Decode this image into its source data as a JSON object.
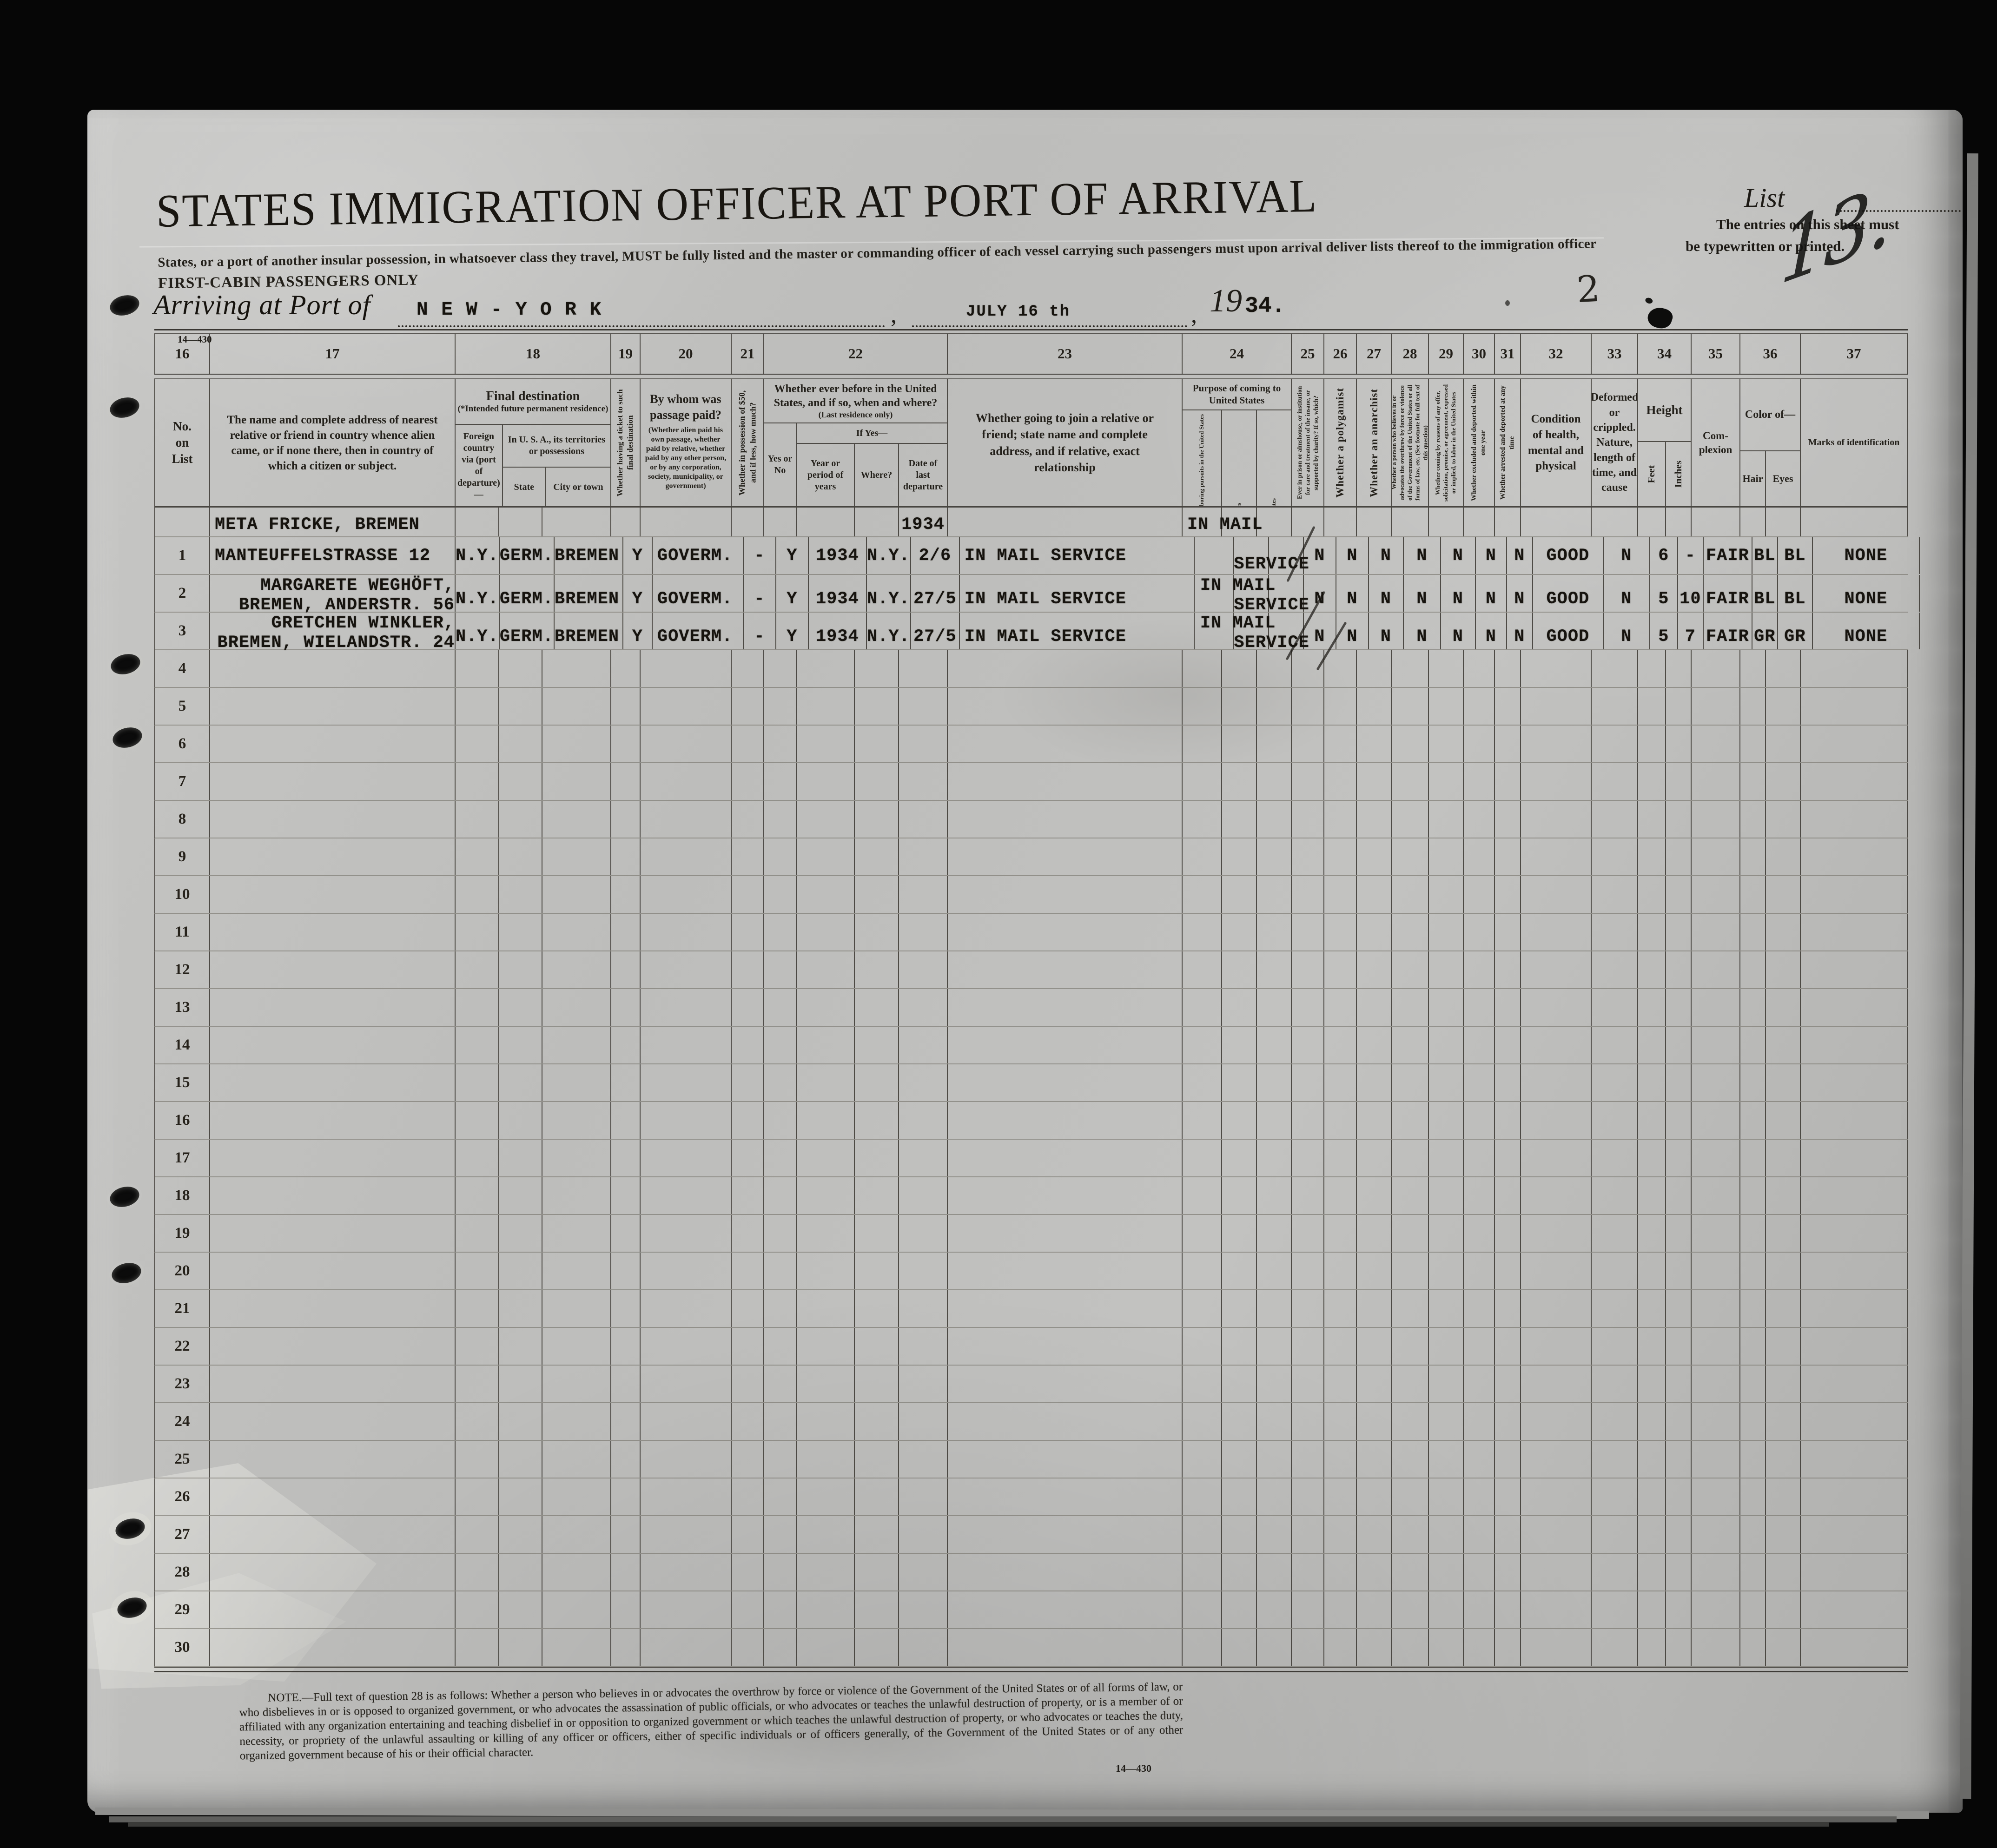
{
  "page": {
    "background_color": "#060606",
    "paper_color": "#bfbfbd",
    "ink_color": "#201d18",
    "title": "STATES IMMIGRATION OFFICER AT PORT OF ARRIVAL",
    "subtitle": "States, or a port of another insular possession, in whatsoever class they travel, MUST be fully listed and the master or commanding officer of each vessel carrying such passengers must upon arrival deliver lists thereof to the immigration officer",
    "cabin_note": "FIRST-CABIN PASSENGERS ONLY",
    "form_number_top": "14—430",
    "form_number_bottom": "14—430",
    "list_label": "List",
    "typed_instruction_line1": "The entries on this sheet must",
    "typed_instruction_line2": "be typewritten or printed.",
    "handwritten_sheet_number": "13.",
    "handwritten_page_number": "2",
    "arriving_label": "Arriving at Port of",
    "port_value": "N E W - Y O R K",
    "comma": ",",
    "date_value": "JULY 16 th",
    "year_printed": "19",
    "year_typed": "34."
  },
  "table": {
    "column_numbers": [
      "16",
      "17",
      "18",
      "19",
      "20",
      "21",
      "22",
      "23",
      "24",
      "25",
      "26",
      "27",
      "28",
      "29",
      "30",
      "31",
      "32",
      "33",
      "34",
      "35",
      "36",
      "37"
    ],
    "headers": {
      "c16": "No.\non\nList",
      "c17": "The name and complete address of nearest relative or friend in country whence alien came, or if none there, then in country of which a citizen or subject.",
      "c18_title": "Final destination",
      "c18_sub": "(*Intended future permanent residence)",
      "c18_foreign": "Foreign country via (port of departure)—",
      "c18_usa": "In U. S. A., its territories or possessions",
      "c18_state": "State",
      "c18_city": "City or town",
      "c19": "Whether having a ticket to such final destination",
      "c20_title": "By whom was passage paid?",
      "c20_sub": "(Whether alien paid his own passage, whether paid by relative, whether paid by any other person, or by any corporation, society, municipality, or government)",
      "c21": "Whether in possession of $50, and if less, how much?",
      "c22_title": "Whether ever before in the United States, and if so, when and where?",
      "c22_sub": "(Last residence only)",
      "c22_yesno": "Yes or No",
      "c22_ifyes": "If Yes—",
      "c22_year": "Year or period of years",
      "c22_where": "Where?",
      "c22_date": "Date of last departure",
      "c23": "Whether going to join a relative or friend; state name and complete address, and if relative, exact relationship",
      "c24_title": "Purpose of coming to United States",
      "c24_a": "Whether alien intends to return to country whence he came after engaging temporarily in laboring pursuits in the United States",
      "c24_b": "Length of time alien intends to remain in the United States",
      "c24_c": "Whether alien intends to become a citizen of the United States",
      "c25": "Ever in prison or almshouse, or institution for care and treatment of the insane, or supported by charity? If so, which?",
      "c26": "Whether a polygamist",
      "c27": "Whether an anarchist",
      "c28": "Whether a person who believes in or advocates the overthrow by force or violence of the Government of the United States or all forms of law, etc. (See footnote for full text of this question)",
      "c29": "Whether coming by reasons of any offer, solicitation, promise, or agreement, expressed or implied, to labor in the United States",
      "c30": "Whether excluded and deported within one year",
      "c31": "Whether arrested and deported at any time",
      "c32": "Condition of health, mental and physical",
      "c33": "Deformed or crippled. Nature, length of time, and cause",
      "c34_title": "Height",
      "c34_feet": "Feet",
      "c34_inches": "Inches",
      "c35": "Com-\nplexion",
      "c36_title": "Color of—",
      "c36_hair": "Hair",
      "c36_eyes": "Eyes",
      "c37": "Marks of identification"
    },
    "continuation_row": {
      "name": "META FRICKE, BREMEN",
      "date_last": "1934",
      "purpose": "IN MAIL"
    },
    "rows": [
      {
        "no": "1",
        "name": "MANTEUFFELSTRASSE 12",
        "name2": "",
        "foreign_country": "N.Y.",
        "state": "GERM.",
        "city": "BREMEN",
        "ticket": "Y",
        "paid_by": "GOVERM.",
        "fifty": "-",
        "before": "Y",
        "year": "1934",
        "where": "N.Y.",
        "date_last": "2/6",
        "join": "IN MAIL SERVICE",
        "purpose_top": "",
        "purpose": "SERVICE",
        "prison": "N",
        "polygamist": "N",
        "anarchist": "N",
        "overthrow": "N",
        "labor_offer": "N",
        "excluded": "N",
        "arrested": "N",
        "health": "GOOD",
        "deformed": "N",
        "feet": "6",
        "inches": "-",
        "complexion": "FAIR",
        "hair": "BL",
        "eyes": "BL",
        "marks": "NONE"
      },
      {
        "no": "2",
        "name": "MARGARETE WEGHÖFT,",
        "name2": "BREMEN, ANDERSTR. 56",
        "foreign_country": "N.Y.",
        "state": "GERM.",
        "city": "BREMEN",
        "ticket": "Y",
        "paid_by": "GOVERM.",
        "fifty": "-",
        "before": "Y",
        "year": "1934",
        "where": "N.Y.",
        "date_last": "27/5",
        "join": "IN MAIL SERVICE",
        "purpose_top": "IN MAIL",
        "purpose": "SERVICE",
        "prison": "N",
        "polygamist": "N",
        "anarchist": "N",
        "overthrow": "N",
        "labor_offer": "N",
        "excluded": "N",
        "arrested": "N",
        "health": "GOOD",
        "deformed": "N",
        "feet": "5",
        "inches": "10",
        "complexion": "FAIR",
        "hair": "BL",
        "eyes": "BL",
        "marks": "NONE"
      },
      {
        "no": "3",
        "name": "GRETCHEN WINKLER,",
        "name2": "BREMEN, WIELANDSTR. 24",
        "foreign_country": "N.Y.",
        "state": "GERM.",
        "city": "BREMEN",
        "ticket": "Y",
        "paid_by": "GOVERM.",
        "fifty": "-",
        "before": "Y",
        "year": "1934",
        "where": "N.Y.",
        "date_last": "27/5",
        "join": "IN MAIL SERVICE",
        "purpose_top": "IN MAIL",
        "purpose": "SERVICE",
        "prison": "N",
        "polygamist": "N",
        "anarchist": "N",
        "overthrow": "N",
        "labor_offer": "N",
        "excluded": "N",
        "arrested": "N",
        "health": "GOOD",
        "deformed": "N",
        "feet": "5",
        "inches": "7",
        "complexion": "FAIR",
        "hair": "GR",
        "eyes": "GR",
        "marks": "NONE"
      }
    ],
    "empty_row_numbers": [
      "4",
      "5",
      "6",
      "7",
      "8",
      "9",
      "10",
      "11",
      "12",
      "13",
      "14",
      "15",
      "16",
      "17",
      "18",
      "19",
      "20",
      "21",
      "22",
      "23",
      "24",
      "25",
      "26",
      "27",
      "28",
      "29",
      "30"
    ]
  },
  "footer": {
    "note": "NOTE.—Full text of question 28 is as follows: Whether a person who believes in or advocates the overthrow by force or violence of the Government of the United States or of all forms of law, or who disbelieves in or is opposed to organized government, or who advocates the assassination of public officials, or who advocates or teaches the unlawful destruction of property, or is a member of or affiliated with any organization entertaining and teaching disbelief in or opposition to organized government or which teaches the unlawful destruction of property, or who advocates or teaches the duty, necessity, or propriety of the unlawful assaulting or killing of any officer or officers, either of specific individuals or of officers generally, of the Government of the United States or of any other organized government because of his or their official character."
  }
}
